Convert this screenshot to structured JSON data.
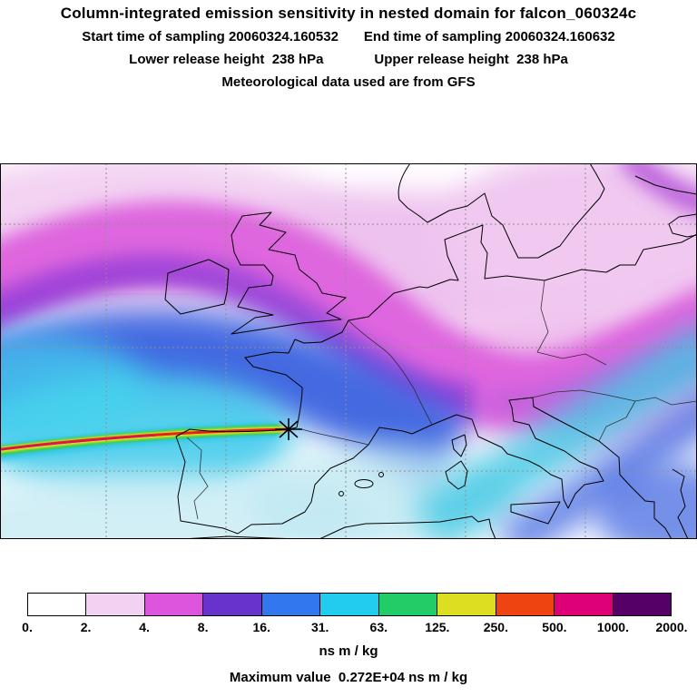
{
  "header": {
    "title": "Column-integrated emission sensitivity in nested domain for falcon_060324c",
    "start_time_label": "Start time of sampling 20060324.160532",
    "end_time_label": "End time of sampling 20060324.160632",
    "lower_release_label": "Lower release height  238 hPa",
    "upper_release_label": "Upper release height  238 hPa",
    "met_source_label": "Meteorological data used are from GFS"
  },
  "colorbar": {
    "tick_labels": [
      "0.",
      "2.",
      "4.",
      "8.",
      "16.",
      "31.",
      "63.",
      "125.",
      "250.",
      "500.",
      "1000.",
      "2000."
    ],
    "segment_colors": [
      "#ffffff",
      "#f2d2f2",
      "#dd55dd",
      "#6633cc",
      "#3377ee",
      "#22ccee",
      "#22cc66",
      "#dddd22",
      "#ee4411",
      "#dd0077",
      "#550066"
    ],
    "units": "ns m / kg"
  },
  "footer": {
    "max_value_label": "Maximum value  0.272E+04 ns m / kg"
  },
  "chart_data": {
    "type": "heatmap",
    "title": "Column-integrated emission sensitivity in nested domain for falcon_060324c",
    "start_time": "20060324.160532",
    "end_time": "20060324.160632",
    "lower_release_height": "238 hPa",
    "upper_release_height": "238 hPa",
    "met_data_source": "GFS",
    "units": "ns m / kg",
    "max_value": "0.272E+04 ns m / kg",
    "colorscale_levels": [
      0,
      2,
      4,
      8,
      16,
      31,
      63,
      125,
      250,
      500,
      1000,
      2000
    ],
    "colorscale_colors": [
      "#ffffff",
      "#f2d2f2",
      "#dd55dd",
      "#6633cc",
      "#3377ee",
      "#22ccee",
      "#22cc66",
      "#dddd22",
      "#ee4411",
      "#dd0077",
      "#550066"
    ],
    "map_region": "Europe and eastern North Atlantic with coastlines and dashed graticule",
    "release_marker": "black asterisk at plume convergence point over northern Spain",
    "plume_description": "broad magenta-purple sensitivity band across the North Atlantic into central Europe, blue-cyan field below it, narrow high-value jet (green/yellow/red core) entering from the west and converging at the marker"
  }
}
